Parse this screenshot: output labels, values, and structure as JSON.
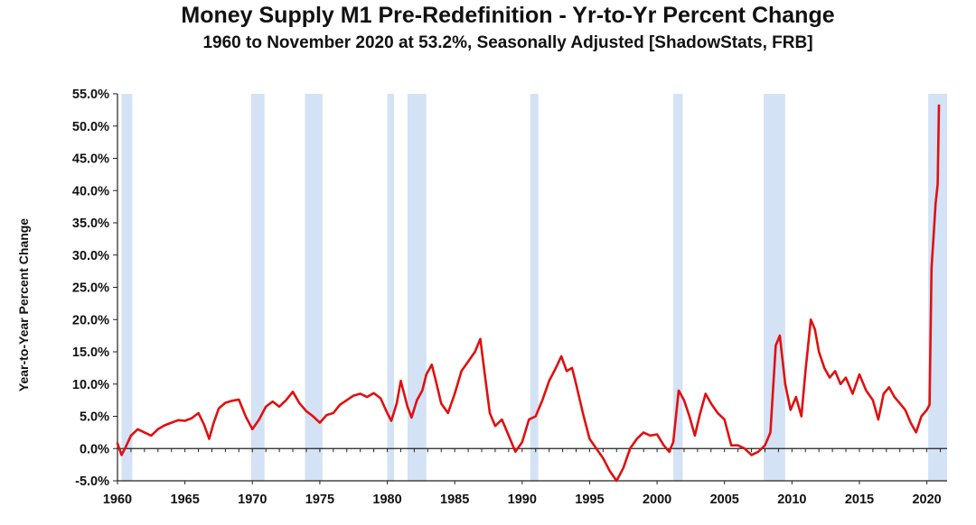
{
  "chart_data": {
    "type": "line",
    "title": "Money Supply M1 Pre-Redefinition -  Yr-to-Yr Percent Change",
    "subtitle": "1960 to November 2020 at 53.2%, Seasonally Adjusted  [ShadowStats, FRB]",
    "xlabel": "",
    "ylabel": "Year-to-Year Percent Change",
    "xlim": [
      1960,
      2021.5
    ],
    "ylim": [
      -5,
      55
    ],
    "x_ticks": [
      1960,
      1965,
      1970,
      1975,
      1980,
      1985,
      1990,
      1995,
      2000,
      2005,
      2010,
      2015,
      2020
    ],
    "x_tick_labels": [
      "1960",
      "1965",
      "1970",
      "1975",
      "1980",
      "1985",
      "1990",
      "1995",
      "2000",
      "2005",
      "2010",
      "2015",
      "2020"
    ],
    "y_ticks": [
      -5,
      0,
      5,
      10,
      15,
      20,
      25,
      30,
      35,
      40,
      45,
      50,
      55
    ],
    "y_tick_labels": [
      "-5.0%",
      "0.0%",
      "5.0%",
      "10.0%",
      "15.0%",
      "20.0%",
      "25.0%",
      "30.0%",
      "35.0%",
      "40.0%",
      "45.0%",
      "50.0%",
      "55.0%"
    ],
    "recessions": [
      [
        1960.3,
        1961.1
      ],
      [
        1969.9,
        1970.9
      ],
      [
        1973.9,
        1975.2
      ],
      [
        1980.0,
        1980.5
      ],
      [
        1981.5,
        1982.9
      ],
      [
        1990.6,
        1991.2
      ],
      [
        2001.2,
        2001.9
      ],
      [
        2007.9,
        2009.5
      ],
      [
        2020.1,
        2021.5
      ]
    ],
    "colors": {
      "line": "#e01010",
      "recession": "#d4e2f5",
      "axis": "#222222",
      "text": "#111111"
    },
    "series": [
      {
        "name": "M1 Pre-Redefinition Yr-to-Yr % Change",
        "x": [
          1960.0,
          1960.3,
          1960.6,
          1961.0,
          1961.5,
          1962.0,
          1962.5,
          1963.0,
          1963.5,
          1964.0,
          1964.5,
          1965.0,
          1965.5,
          1966.0,
          1966.4,
          1966.8,
          1967.1,
          1967.5,
          1968.0,
          1968.5,
          1969.0,
          1969.5,
          1970.0,
          1970.5,
          1971.0,
          1971.5,
          1972.0,
          1972.5,
          1973.0,
          1973.5,
          1974.0,
          1974.5,
          1975.0,
          1975.5,
          1976.0,
          1976.5,
          1977.0,
          1977.5,
          1978.0,
          1978.5,
          1979.0,
          1979.5,
          1980.0,
          1980.3,
          1980.7,
          1981.0,
          1981.5,
          1981.8,
          1982.2,
          1982.6,
          1982.9,
          1983.3,
          1983.6,
          1984.0,
          1984.5,
          1985.0,
          1985.5,
          1986.0,
          1986.5,
          1986.9,
          1987.2,
          1987.6,
          1988.0,
          1988.5,
          1989.0,
          1989.5,
          1990.0,
          1990.5,
          1991.0,
          1991.5,
          1992.0,
          1992.5,
          1992.9,
          1993.3,
          1993.7,
          1994.0,
          1994.5,
          1995.0,
          1995.5,
          1996.0,
          1996.5,
          1997.0,
          1997.5,
          1998.0,
          1998.5,
          1999.0,
          1999.5,
          2000.0,
          2000.5,
          2000.9,
          2001.2,
          2001.6,
          2002.0,
          2002.4,
          2002.8,
          2003.2,
          2003.6,
          2004.0,
          2004.5,
          2005.0,
          2005.5,
          2006.0,
          2006.5,
          2007.0,
          2007.5,
          2008.0,
          2008.4,
          2008.8,
          2009.1,
          2009.5,
          2009.9,
          2010.3,
          2010.7,
          2011.0,
          2011.4,
          2011.7,
          2012.0,
          2012.4,
          2012.8,
          2013.2,
          2013.6,
          2014.0,
          2014.5,
          2015.0,
          2015.5,
          2016.0,
          2016.4,
          2016.8,
          2017.2,
          2017.6,
          2018.0,
          2018.4,
          2018.8,
          2019.2,
          2019.6,
          2020.0,
          2020.2,
          2020.35,
          2020.5,
          2020.65,
          2020.8,
          2020.9
        ],
        "values": [
          0.8,
          -1.0,
          0.2,
          2.0,
          3.0,
          2.5,
          2.0,
          3.0,
          3.6,
          4.0,
          4.4,
          4.3,
          4.7,
          5.5,
          3.8,
          1.5,
          3.8,
          6.2,
          7.1,
          7.4,
          7.6,
          5.0,
          3.0,
          4.5,
          6.5,
          7.3,
          6.5,
          7.5,
          8.8,
          7.0,
          5.8,
          5.0,
          4.0,
          5.2,
          5.5,
          6.8,
          7.5,
          8.2,
          8.5,
          8.0,
          8.6,
          7.8,
          5.5,
          4.3,
          7.0,
          10.5,
          6.5,
          4.8,
          7.5,
          9.0,
          11.5,
          13.0,
          10.5,
          7.0,
          5.5,
          8.5,
          12.0,
          13.5,
          15.0,
          17.0,
          12.0,
          5.5,
          3.5,
          4.5,
          2.0,
          -0.5,
          1.0,
          4.5,
          5.0,
          7.5,
          10.5,
          12.5,
          14.3,
          12.0,
          12.5,
          10.0,
          5.5,
          1.5,
          0.0,
          -1.5,
          -3.5,
          -5.0,
          -3.0,
          0.0,
          1.5,
          2.5,
          2.0,
          2.2,
          0.5,
          -0.5,
          1.0,
          9.0,
          7.5,
          5.0,
          2.0,
          5.5,
          8.5,
          7.0,
          5.5,
          4.5,
          0.5,
          0.5,
          0.0,
          -1.0,
          -0.5,
          0.5,
          2.5,
          16.0,
          17.5,
          10.0,
          6.0,
          8.0,
          5.0,
          12.0,
          20.0,
          18.5,
          15.0,
          12.5,
          11.0,
          12.0,
          10.0,
          11.0,
          8.5,
          11.5,
          9.0,
          7.5,
          4.5,
          8.5,
          9.5,
          8.0,
          7.0,
          6.0,
          4.0,
          2.5,
          5.0,
          6.0,
          6.8,
          28.0,
          33.0,
          38.0,
          41.0,
          53.2
        ]
      }
    ]
  }
}
